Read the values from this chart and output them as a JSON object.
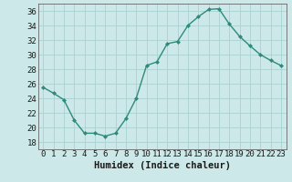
{
  "x": [
    0,
    1,
    2,
    3,
    4,
    5,
    6,
    7,
    8,
    9,
    10,
    11,
    12,
    13,
    14,
    15,
    16,
    17,
    18,
    19,
    20,
    21,
    22,
    23
  ],
  "y": [
    25.5,
    24.7,
    23.8,
    21.0,
    19.2,
    19.2,
    18.8,
    19.2,
    21.2,
    24.0,
    28.5,
    29.0,
    31.5,
    31.8,
    34.0,
    35.2,
    36.2,
    36.3,
    34.2,
    32.5,
    31.2,
    30.0,
    29.2,
    28.5
  ],
  "xlabel": "Humidex (Indice chaleur)",
  "ylim": [
    17,
    37
  ],
  "xlim": [
    -0.5,
    23.5
  ],
  "yticks": [
    18,
    20,
    22,
    24,
    26,
    28,
    30,
    32,
    34,
    36
  ],
  "xtick_labels": [
    "0",
    "1",
    "2",
    "3",
    "4",
    "5",
    "6",
    "7",
    "8",
    "9",
    "10",
    "11",
    "12",
    "13",
    "14",
    "15",
    "16",
    "17",
    "18",
    "19",
    "20",
    "21",
    "22",
    "23"
  ],
  "line_color": "#2e8b7a",
  "marker_color": "#2e8b7a",
  "bg_color": "#cce8e8",
  "grid_color": "#aed4d4",
  "label_fontsize": 7.5,
  "tick_fontsize": 6.5
}
